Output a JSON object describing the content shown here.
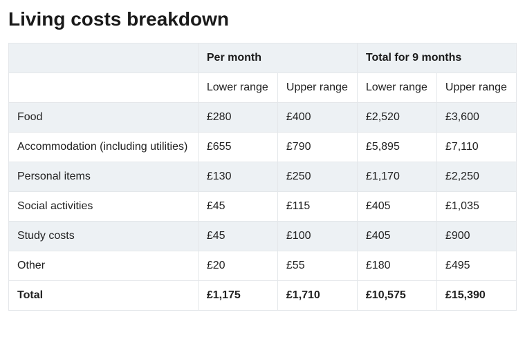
{
  "title": "Living costs breakdown",
  "table": {
    "group_headers": {
      "blank": "",
      "per_month": "Per month",
      "total_9m": "Total for 9 months"
    },
    "sub_headers": {
      "blank": "",
      "pm_lower": "Lower range",
      "pm_upper": "Upper range",
      "t9_lower": "Lower range",
      "t9_upper": "Upper range"
    },
    "rows": [
      {
        "label": "Food",
        "pm_lower": "£280",
        "pm_upper": "£400",
        "t9_lower": "£2,520",
        "t9_upper": "£3,600"
      },
      {
        "label": "Accommodation (including utilities)",
        "pm_lower": "£655",
        "pm_upper": "£790",
        "t9_lower": "£5,895",
        "t9_upper": "£7,110"
      },
      {
        "label": "Personal items",
        "pm_lower": "£130",
        "pm_upper": "£250",
        "t9_lower": "£1,170",
        "t9_upper": "£2,250"
      },
      {
        "label": "Social activities",
        "pm_lower": "£45",
        "pm_upper": "£115",
        "t9_lower": "£405",
        "t9_upper": "£1,035"
      },
      {
        "label": "Study costs",
        "pm_lower": "£45",
        "pm_upper": "£100",
        "t9_lower": "£405",
        "t9_upper": "£900"
      },
      {
        "label": "Other",
        "pm_lower": "£20",
        "pm_upper": "£55",
        "t9_lower": "£180",
        "t9_upper": "£495"
      }
    ],
    "total": {
      "label": "Total",
      "pm_lower": "£1,175",
      "pm_upper": "£1,710",
      "t9_lower": "£10,575",
      "t9_upper": "£15,390"
    }
  },
  "colors": {
    "row_alt_bg": "#edf1f4",
    "border": "#e4e7ea",
    "text": "#212121"
  }
}
